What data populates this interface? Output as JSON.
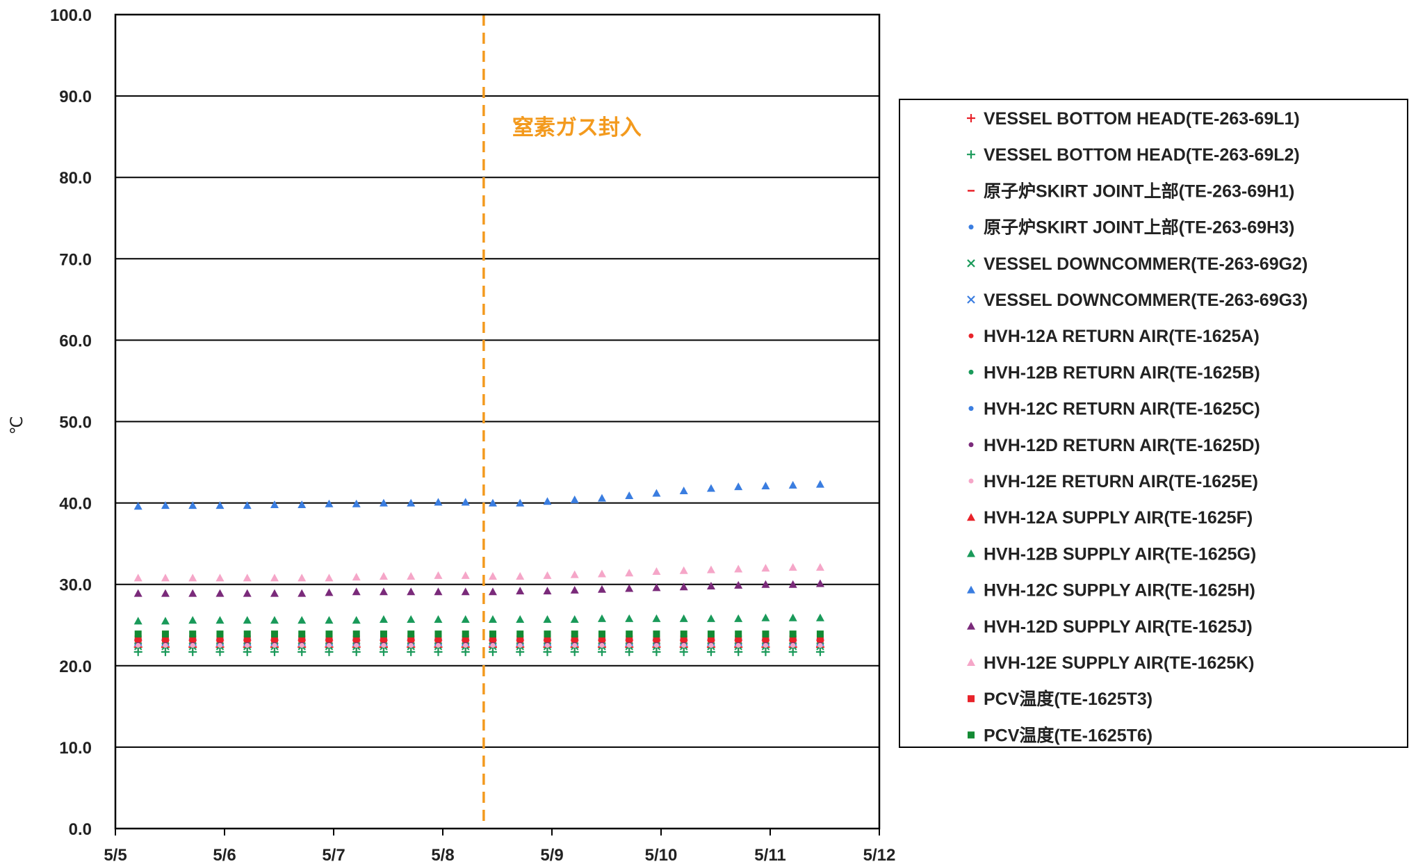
{
  "chart_data": {
    "type": "scatter",
    "title": "",
    "xlabel": "",
    "ylabel": "℃",
    "xlim": [
      "5/5",
      "5/12"
    ],
    "ylim": [
      0,
      100
    ],
    "x_ticks": [
      "5/5",
      "5/6",
      "5/7",
      "5/8",
      "5/9",
      "5/10",
      "5/11",
      "5/12"
    ],
    "y_ticks": [
      "0.0",
      "10.0",
      "20.0",
      "30.0",
      "40.0",
      "50.0",
      "60.0",
      "70.0",
      "80.0",
      "90.0",
      "100.0"
    ],
    "grid": "horizontal",
    "legend_position": "right",
    "annotations": [
      {
        "text": "窒素ガス封入",
        "x": "5/8 09:00",
        "style": "vertical dashed line",
        "color": "#f39a1e"
      }
    ],
    "x_dates": [
      "5/5 05:00",
      "5/5 11:00",
      "5/5 17:00",
      "5/5 23:00",
      "5/6 05:00",
      "5/6 11:00",
      "5/6 17:00",
      "5/6 23:00",
      "5/7 05:00",
      "5/7 11:00",
      "5/7 17:00",
      "5/7 23:00",
      "5/8 05:00",
      "5/8 11:00",
      "5/8 17:00",
      "5/8 23:00",
      "5/9 05:00",
      "5/9 11:00",
      "5/9 17:00",
      "5/9 23:00",
      "5/10 05:00",
      "5/10 11:00",
      "5/10 17:00",
      "5/10 23:00",
      "5/11 05:00",
      "5/11 11:00"
    ],
    "series": [
      {
        "name": "VESSEL BOTTOM HEAD(TE-263-69L1)",
        "marker": "plus",
        "color": "#e8232a",
        "values": [
          22.3,
          22.3,
          22.3,
          22.3,
          22.3,
          22.3,
          22.3,
          22.3,
          22.3,
          22.3,
          22.3,
          22.3,
          22.3,
          22.3,
          22.3,
          22.3,
          22.3,
          22.3,
          22.3,
          22.3,
          22.3,
          22.3,
          22.3,
          22.3,
          22.3,
          22.3
        ]
      },
      {
        "name": "VESSEL BOTTOM HEAD(TE-263-69L2)",
        "marker": "plus",
        "color": "#1a9a5a",
        "values": [
          21.7,
          21.7,
          21.7,
          21.7,
          21.7,
          21.7,
          21.7,
          21.7,
          21.7,
          21.7,
          21.7,
          21.7,
          21.7,
          21.7,
          21.7,
          21.7,
          21.7,
          21.7,
          21.7,
          21.7,
          21.7,
          21.7,
          21.7,
          21.7,
          21.7,
          21.7
        ]
      },
      {
        "name": "原子炉SKIRT JOINT上部(TE-263-69H1)",
        "marker": "dash",
        "color": "#e8232a",
        "values": [
          22.6,
          22.6,
          22.6,
          22.6,
          22.6,
          22.6,
          22.6,
          22.6,
          22.6,
          22.6,
          22.6,
          22.6,
          22.6,
          22.6,
          22.6,
          22.6,
          22.6,
          22.6,
          22.6,
          22.6,
          22.6,
          22.6,
          22.6,
          22.6,
          22.6,
          22.6
        ]
      },
      {
        "name": "原子炉SKIRT JOINT上部(TE-263-69H3)",
        "marker": "dot",
        "color": "#3a7de0",
        "values": [
          22.7,
          22.7,
          22.7,
          22.7,
          22.7,
          22.7,
          22.7,
          22.7,
          22.7,
          22.7,
          22.7,
          22.7,
          22.7,
          22.7,
          22.7,
          22.7,
          22.7,
          22.7,
          22.7,
          22.7,
          22.7,
          22.7,
          22.7,
          22.7,
          22.7,
          22.7
        ]
      },
      {
        "name": "VESSEL DOWNCOMMER(TE-263-69G2)",
        "marker": "x",
        "color": "#1a9a5a",
        "values": [
          22.4,
          22.4,
          22.4,
          22.4,
          22.4,
          22.4,
          22.4,
          22.4,
          22.4,
          22.4,
          22.4,
          22.4,
          22.4,
          22.4,
          22.4,
          22.4,
          22.4,
          22.4,
          22.4,
          22.4,
          22.4,
          22.4,
          22.4,
          22.4,
          22.4,
          22.4
        ]
      },
      {
        "name": "VESSEL DOWNCOMMER(TE-263-69G3)",
        "marker": "x",
        "color": "#3a7de0",
        "values": [
          22.9,
          22.9,
          22.9,
          22.9,
          22.9,
          22.9,
          22.9,
          22.9,
          22.9,
          22.9,
          22.9,
          22.9,
          22.9,
          22.9,
          22.9,
          22.9,
          22.9,
          22.9,
          22.9,
          22.9,
          22.9,
          22.9,
          22.9,
          22.9,
          22.9,
          22.9
        ]
      },
      {
        "name": "HVH-12A RETURN AIR(TE-1625A)",
        "marker": "dot",
        "color": "#e8232a",
        "values": [
          22.8,
          22.8,
          22.8,
          22.8,
          22.8,
          22.8,
          22.8,
          22.8,
          22.8,
          22.8,
          22.8,
          22.8,
          22.8,
          22.8,
          22.8,
          22.8,
          22.8,
          22.8,
          22.8,
          22.8,
          22.8,
          22.8,
          22.8,
          22.8,
          22.8,
          22.8
        ]
      },
      {
        "name": "HVH-12B RETURN AIR(TE-1625B)",
        "marker": "dot",
        "color": "#1a9a5a",
        "values": [
          22.9,
          22.9,
          22.9,
          22.9,
          22.9,
          22.9,
          22.9,
          22.9,
          22.9,
          22.9,
          22.9,
          22.9,
          22.9,
          22.9,
          22.9,
          22.9,
          22.9,
          22.9,
          22.9,
          22.9,
          22.9,
          22.9,
          22.9,
          22.9,
          22.9,
          22.9
        ]
      },
      {
        "name": "HVH-12C RETURN AIR(TE-1625C)",
        "marker": "dot",
        "color": "#3a7de0",
        "values": [
          23.1,
          23.1,
          23.1,
          23.1,
          23.1,
          23.1,
          23.1,
          23.1,
          23.1,
          23.1,
          23.1,
          23.1,
          23.1,
          23.1,
          23.1,
          23.1,
          23.1,
          23.1,
          23.1,
          23.1,
          23.1,
          23.1,
          23.1,
          23.1,
          23.1,
          23.1
        ]
      },
      {
        "name": "HVH-12D RETURN AIR(TE-1625D)",
        "marker": "dot",
        "color": "#7a2a7a",
        "values": [
          23.0,
          23.0,
          23.0,
          23.0,
          23.0,
          23.0,
          23.0,
          23.0,
          23.0,
          23.0,
          23.0,
          23.0,
          23.0,
          23.0,
          23.0,
          23.0,
          23.0,
          23.0,
          23.0,
          23.0,
          23.0,
          23.0,
          23.0,
          23.0,
          23.0,
          23.0
        ]
      },
      {
        "name": "HVH-12E RETURN AIR(TE-1625E)",
        "marker": "dot",
        "color": "#f5a6c8",
        "values": [
          22.5,
          22.5,
          22.5,
          22.5,
          22.5,
          22.5,
          22.5,
          22.5,
          22.5,
          22.5,
          22.5,
          22.5,
          22.5,
          22.5,
          22.5,
          22.5,
          22.5,
          22.5,
          22.5,
          22.5,
          22.5,
          22.5,
          22.5,
          22.5,
          22.5,
          22.5
        ]
      },
      {
        "name": "HVH-12A SUPPLY AIR(TE-1625F)",
        "marker": "triangle",
        "color": "#e8232a",
        "values": [
          23.5,
          23.5,
          23.5,
          23.5,
          23.5,
          23.5,
          23.5,
          23.5,
          23.5,
          23.5,
          23.5,
          23.5,
          23.5,
          23.5,
          23.5,
          23.5,
          23.5,
          23.5,
          23.5,
          23.5,
          23.5,
          23.5,
          23.5,
          23.5,
          23.5,
          23.5
        ]
      },
      {
        "name": "HVH-12B SUPPLY AIR(TE-1625G)",
        "marker": "triangle",
        "color": "#1a9a5a",
        "values": [
          25.5,
          25.5,
          25.6,
          25.6,
          25.6,
          25.6,
          25.6,
          25.6,
          25.6,
          25.7,
          25.7,
          25.7,
          25.7,
          25.7,
          25.7,
          25.7,
          25.7,
          25.8,
          25.8,
          25.8,
          25.8,
          25.8,
          25.8,
          25.9,
          25.9,
          25.9
        ]
      },
      {
        "name": "HVH-12C SUPPLY AIR(TE-1625H)",
        "marker": "triangle",
        "color": "#3a7de0",
        "values": [
          39.6,
          39.7,
          39.7,
          39.7,
          39.7,
          39.8,
          39.8,
          39.9,
          39.9,
          40.0,
          40.0,
          40.1,
          40.1,
          40.0,
          40.0,
          40.2,
          40.4,
          40.6,
          40.9,
          41.2,
          41.5,
          41.8,
          42.0,
          42.1,
          42.2,
          42.3
        ]
      },
      {
        "name": "HVH-12D SUPPLY AIR(TE-1625J)",
        "marker": "triangle",
        "color": "#7a2a7a",
        "values": [
          28.9,
          28.9,
          28.9,
          28.9,
          28.9,
          28.9,
          28.9,
          29.0,
          29.1,
          29.1,
          29.1,
          29.1,
          29.1,
          29.1,
          29.2,
          29.2,
          29.3,
          29.4,
          29.5,
          29.6,
          29.7,
          29.8,
          29.9,
          30.0,
          30.0,
          30.1
        ]
      },
      {
        "name": "HVH-12E SUPPLY AIR(TE-1625K)",
        "marker": "triangle",
        "color": "#f5a6c8",
        "values": [
          30.8,
          30.8,
          30.8,
          30.8,
          30.8,
          30.8,
          30.8,
          30.8,
          30.9,
          31.0,
          31.0,
          31.1,
          31.1,
          31.0,
          31.0,
          31.1,
          31.2,
          31.3,
          31.4,
          31.6,
          31.7,
          31.8,
          31.9,
          32.0,
          32.1,
          32.1
        ]
      },
      {
        "name": "PCV温度(TE-1625T3)",
        "marker": "square",
        "color": "#e8232a",
        "values": [
          23.3,
          23.3,
          23.3,
          23.3,
          23.3,
          23.3,
          23.3,
          23.3,
          23.3,
          23.3,
          23.3,
          23.3,
          23.3,
          23.3,
          23.3,
          23.3,
          23.3,
          23.3,
          23.3,
          23.3,
          23.3,
          23.3,
          23.3,
          23.3,
          23.3,
          23.3
        ]
      },
      {
        "name": "PCV温度(TE-1625T6)",
        "marker": "square",
        "color": "#138a33",
        "values": [
          23.9,
          23.9,
          23.9,
          23.9,
          23.9,
          23.9,
          23.9,
          23.9,
          23.9,
          23.9,
          23.9,
          23.9,
          23.9,
          23.9,
          23.9,
          23.9,
          23.9,
          23.9,
          23.9,
          23.9,
          23.9,
          23.9,
          23.9,
          23.9,
          23.9,
          23.9
        ]
      }
    ]
  }
}
